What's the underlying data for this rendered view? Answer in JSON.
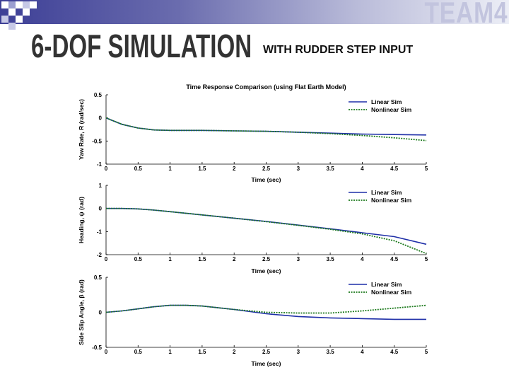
{
  "slide": {
    "team": "TEAM4",
    "title": "6-DOF SIMULATION",
    "subtitle": "WITH RUDDER STEP INPUT"
  },
  "colors": {
    "bar_dark": "#3d3f96",
    "title_text": "#333333",
    "linear": "#1f2fa8",
    "nonlinear": "#1d7a1d"
  },
  "chart_data": [
    {
      "type": "line",
      "title": "Time Response Comparison (using Flat Earth Model)",
      "xlabel": "Time (sec)",
      "ylabel": "Yaw Rate, R (rad/sec)",
      "xlim": [
        0,
        5
      ],
      "ylim": [
        -1,
        0.5
      ],
      "xticks": [
        "0",
        "0.5",
        "1",
        "1.5",
        "2",
        "2.5",
        "3",
        "3.5",
        "4",
        "4.5",
        "5"
      ],
      "yticks": [
        "0.5",
        "0",
        "-0.5",
        "-1"
      ],
      "legend": "top-right",
      "x": [
        0,
        0.25,
        0.5,
        0.75,
        1,
        1.5,
        2,
        2.5,
        3,
        3.5,
        4,
        4.5,
        5
      ],
      "series": [
        {
          "name": "Linear Sim",
          "values": [
            0,
            -0.14,
            -0.22,
            -0.26,
            -0.27,
            -0.27,
            -0.28,
            -0.29,
            -0.31,
            -0.33,
            -0.35,
            -0.36,
            -0.37
          ]
        },
        {
          "name": "Nonlinear Sim",
          "values": [
            0,
            -0.14,
            -0.22,
            -0.26,
            -0.27,
            -0.27,
            -0.28,
            -0.29,
            -0.31,
            -0.34,
            -0.38,
            -0.43,
            -0.49
          ]
        }
      ]
    },
    {
      "type": "line",
      "title": "",
      "xlabel": "Time (sec)",
      "ylabel": "Heading, ψ (rad)",
      "xlim": [
        0,
        5
      ],
      "ylim": [
        -2,
        1
      ],
      "xticks": [
        "0",
        "0.5",
        "1",
        "1.5",
        "2",
        "2.5",
        "3",
        "3.5",
        "4",
        "4.5",
        "5"
      ],
      "yticks": [
        "1",
        "0",
        "-1",
        "-2"
      ],
      "legend": "top-right",
      "x": [
        0,
        0.25,
        0.5,
        0.75,
        1,
        1.5,
        2,
        2.5,
        3,
        3.5,
        4,
        4.5,
        5
      ],
      "series": [
        {
          "name": "Linear Sim",
          "values": [
            0,
            0,
            -0.02,
            -0.07,
            -0.14,
            -0.28,
            -0.42,
            -0.56,
            -0.72,
            -0.88,
            -1.05,
            -1.22,
            -1.55
          ]
        },
        {
          "name": "Nonlinear Sim",
          "values": [
            0,
            0,
            -0.02,
            -0.07,
            -0.14,
            -0.28,
            -0.42,
            -0.57,
            -0.73,
            -0.9,
            -1.1,
            -1.4,
            -1.95
          ]
        }
      ]
    },
    {
      "type": "line",
      "title": "",
      "xlabel": "Time (sec)",
      "ylabel": "Side Slip Angle, β (rad)",
      "xlim": [
        0,
        5
      ],
      "ylim": [
        -0.5,
        0.5
      ],
      "xticks": [
        "0",
        "0.5",
        "1",
        "1.5",
        "2",
        "2.5",
        "3",
        "3.5",
        "4",
        "4.5",
        "5"
      ],
      "yticks": [
        "0.5",
        "0",
        "-0.5"
      ],
      "legend": "top-right",
      "x": [
        0,
        0.25,
        0.5,
        0.75,
        1,
        1.25,
        1.5,
        2,
        2.5,
        3,
        3.5,
        4,
        4.5,
        5
      ],
      "series": [
        {
          "name": "Linear Sim",
          "values": [
            0,
            0.02,
            0.05,
            0.08,
            0.1,
            0.1,
            0.09,
            0.04,
            -0.02,
            -0.06,
            -0.08,
            -0.09,
            -0.1,
            -0.1
          ]
        },
        {
          "name": "Nonlinear Sim",
          "values": [
            0,
            0.02,
            0.05,
            0.08,
            0.1,
            0.1,
            0.09,
            0.04,
            0,
            -0.01,
            -0.01,
            0.02,
            0.06,
            0.1
          ]
        }
      ]
    }
  ]
}
